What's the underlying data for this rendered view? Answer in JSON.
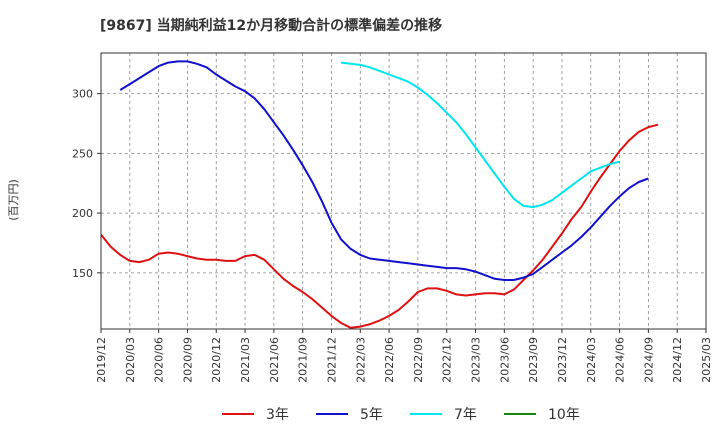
{
  "chart_data": {
    "type": "line",
    "title": "[9867]  当期純利益12か月移動合計の標準偏差の推移",
    "ylabel": "(百万円)",
    "xlabel": "",
    "ylim": [
      103,
      334
    ],
    "yticks": [
      150,
      200,
      250,
      300
    ],
    "grid": true,
    "legend_position": "bottom",
    "x_labels": [
      "2019/12",
      "2020/03",
      "2020/06",
      "2020/09",
      "2020/12",
      "2021/03",
      "2021/06",
      "2021/09",
      "2021/12",
      "2022/03",
      "2022/06",
      "2022/09",
      "2022/12",
      "2023/03",
      "2023/06",
      "2023/09",
      "2023/12",
      "2024/03",
      "2024/06",
      "2024/09",
      "2024/12",
      "2025/03"
    ],
    "series": [
      {
        "name": "3年",
        "color": "#dd1111",
        "start_index": 0,
        "values": [
          182,
          172,
          165,
          160,
          159,
          161,
          166,
          167,
          166,
          164,
          162,
          161,
          161,
          160,
          160,
          164,
          165,
          161,
          153,
          145,
          139,
          134,
          128,
          121,
          114,
          108,
          104,
          105,
          107,
          110,
          114,
          119,
          126,
          134,
          137,
          137,
          135,
          132,
          131,
          132,
          133,
          133,
          132,
          136,
          144,
          152,
          161,
          172,
          183,
          195,
          205,
          218,
          230,
          241,
          252,
          261,
          268,
          272,
          274
        ],
        "stride": 1
      },
      {
        "name": "5年",
        "color": "#1111cc",
        "start_index": 2,
        "values": [
          303,
          308,
          313,
          318,
          323,
          326,
          327,
          327,
          325,
          322,
          316,
          311,
          306,
          302,
          296,
          287,
          276,
          265,
          253,
          240,
          226,
          210,
          192,
          178,
          170,
          165,
          162,
          161,
          160,
          159,
          158,
          157,
          156,
          155,
          154,
          154,
          153,
          151,
          148,
          145,
          144,
          144,
          146,
          149,
          155,
          161,
          167,
          173,
          180,
          188,
          197,
          206,
          214,
          221,
          226,
          229
        ],
        "stride": 1
      },
      {
        "name": "7年",
        "color": "#00e5ee",
        "start_index": 25,
        "values": [
          326,
          325,
          324,
          322,
          319,
          316,
          313,
          310,
          305,
          299,
          292,
          284,
          276,
          266,
          255,
          244,
          233,
          222,
          212,
          206,
          205,
          207,
          211,
          217,
          223,
          229,
          235,
          238,
          241,
          243
        ],
        "stride": 1
      },
      {
        "name": "10年",
        "color": "#118811",
        "start_index": 0,
        "values": [],
        "stride": 1
      }
    ]
  }
}
